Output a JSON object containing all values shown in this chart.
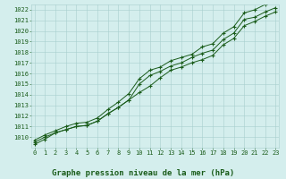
{
  "xlabel": "Graphe pression niveau de la mer (hPa)",
  "x": [
    0,
    1,
    2,
    3,
    4,
    5,
    6,
    7,
    8,
    9,
    10,
    11,
    12,
    13,
    14,
    15,
    16,
    17,
    18,
    19,
    20,
    21,
    22,
    23
  ],
  "y_main": [
    1009.5,
    1010.0,
    1010.4,
    1010.7,
    1011.0,
    1011.1,
    1011.5,
    1012.2,
    1012.8,
    1013.5,
    1015.0,
    1015.8,
    1016.2,
    1016.7,
    1017.0,
    1017.5,
    1017.9,
    1018.2,
    1019.2,
    1019.8,
    1021.1,
    1021.3,
    1021.8,
    1022.2
  ],
  "y_low": [
    1009.3,
    1009.8,
    1010.4,
    1010.7,
    1011.0,
    1011.1,
    1011.5,
    1012.2,
    1012.8,
    1013.5,
    1014.2,
    1014.8,
    1015.6,
    1016.3,
    1016.6,
    1017.0,
    1017.3,
    1017.7,
    1018.7,
    1019.3,
    1020.5,
    1020.9,
    1021.4,
    1021.8
  ],
  "y_high": [
    1009.7,
    1010.2,
    1010.6,
    1011.0,
    1011.3,
    1011.4,
    1011.8,
    1012.6,
    1013.3,
    1014.1,
    1015.5,
    1016.3,
    1016.6,
    1017.2,
    1017.5,
    1017.8,
    1018.5,
    1018.8,
    1019.8,
    1020.4,
    1021.7,
    1022.0,
    1022.5,
    1022.8
  ],
  "line_color": "#1a5c1a",
  "marker_color": "#1a5c1a",
  "bg_color": "#d4eeed",
  "grid_color": "#a8cece",
  "text_color": "#1a5c1a",
  "bottom_bar_color": "#2a5c2a",
  "ylim_min": 1009,
  "ylim_max": 1023,
  "yticks": [
    1010,
    1011,
    1012,
    1013,
    1014,
    1015,
    1016,
    1017,
    1018,
    1019,
    1020,
    1021,
    1022
  ],
  "xticks": [
    0,
    1,
    2,
    3,
    4,
    5,
    6,
    7,
    8,
    9,
    10,
    11,
    12,
    13,
    14,
    15,
    16,
    17,
    18,
    19,
    20,
    21,
    22,
    23
  ],
  "tick_fontsize": 5.0,
  "xlabel_fontsize": 6.5
}
